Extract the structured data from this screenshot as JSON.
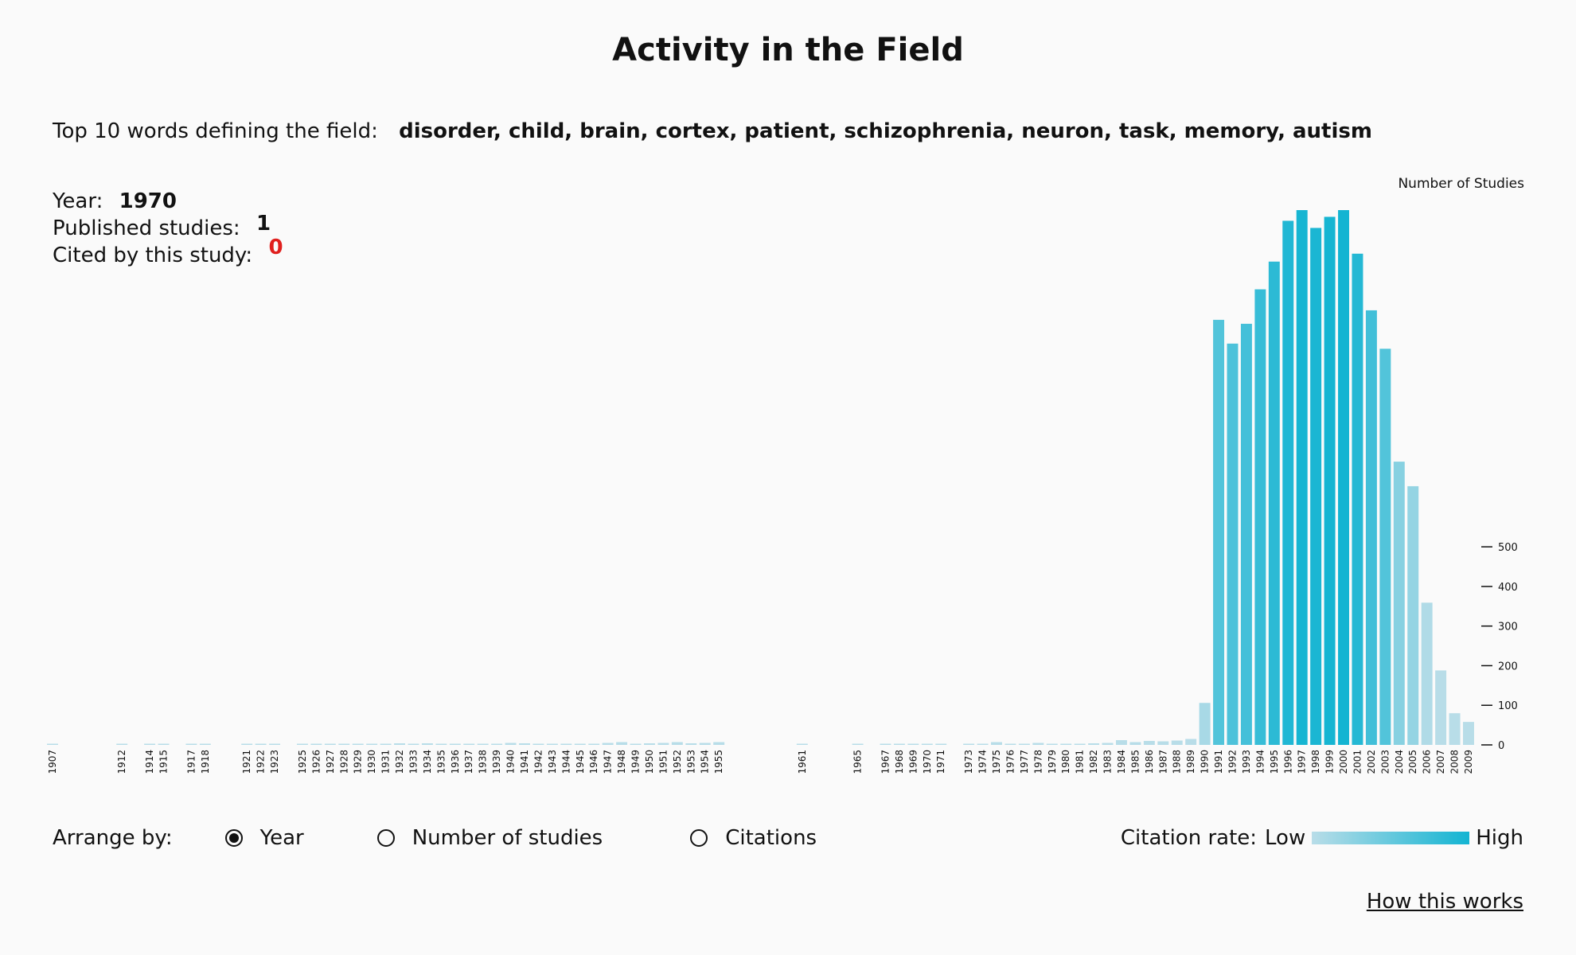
{
  "header": {
    "title": "Activity in the Field",
    "top_words_label": "Top 10 words defining the field:",
    "top_words": "disorder, child, brain, cortex, patient, schizophrenia, neuron, task, memory, autism"
  },
  "info": {
    "year_label": "Year:",
    "year_value": "1970",
    "published_label": "Published studies:",
    "published_value": "1",
    "cited_label": "Cited by this study:",
    "cited_value": "0",
    "cited_color": "#e0201e"
  },
  "controls": {
    "arrange_label": "Arrange by:",
    "options": [
      "Year",
      "Number of studies",
      "Citations"
    ],
    "selected": "Year"
  },
  "legend": {
    "label": "Citation rate:",
    "low": "Low",
    "high": "High",
    "low_color": "#b8dde8",
    "high_color": "#13b4d2"
  },
  "links": {
    "how": "How this works"
  },
  "chart_data": {
    "type": "bar",
    "ylabel": "Number of Studies",
    "yticks": [
      0,
      100,
      200,
      300,
      400,
      500
    ],
    "ylim": [
      0,
      1350
    ],
    "grid": false,
    "categories": [
      "1907",
      "1912",
      "1914",
      "1915",
      "1917",
      "1918",
      "1921",
      "1922",
      "1923",
      "1925",
      "1926",
      "1927",
      "1928",
      "1929",
      "1930",
      "1931",
      "1932",
      "1933",
      "1934",
      "1935",
      "1936",
      "1937",
      "1938",
      "1939",
      "1940",
      "1941",
      "1942",
      "1943",
      "1944",
      "1945",
      "1946",
      "1947",
      "1948",
      "1949",
      "1950",
      "1951",
      "1952",
      "1953",
      "1954",
      "1955",
      "1961",
      "1965",
      "1967",
      "1968",
      "1969",
      "1970",
      "1971",
      "1973",
      "1974",
      "1975",
      "1976",
      "1977",
      "1978",
      "1979",
      "1980",
      "1981",
      "1982",
      "1983",
      "1984",
      "1985",
      "1986",
      "1987",
      "1988",
      "1989",
      "1990",
      "1991",
      "1992",
      "1993",
      "1994",
      "1995",
      "1996",
      "1997",
      "1998",
      "1999",
      "2000",
      "2001",
      "2002",
      "2003",
      "2004",
      "2005",
      "2006",
      "2007",
      "2008",
      "2009"
    ],
    "values": [
      2,
      1,
      1,
      3,
      2,
      1,
      1,
      1,
      1,
      2,
      1,
      1,
      1,
      3,
      1,
      3,
      4,
      1,
      4,
      3,
      2,
      2,
      2,
      3,
      5,
      4,
      2,
      2,
      3,
      3,
      3,
      5,
      7,
      3,
      4,
      5,
      7,
      4,
      5,
      7,
      1,
      1,
      1,
      1,
      1,
      1,
      1,
      2,
      3,
      7,
      3,
      2,
      5,
      2,
      1,
      2,
      4,
      5,
      12,
      7,
      10,
      9,
      11,
      15,
      106,
      1073,
      1013,
      1063,
      1150,
      1220,
      1323,
      1350,
      1305,
      1333,
      1350,
      1240,
      1097,
      1000,
      715,
      653,
      359,
      188,
      80,
      58
    ],
    "citation_rate": [
      0,
      0,
      0,
      0,
      0,
      0,
      0,
      0,
      0,
      0,
      0,
      0,
      0,
      0,
      0,
      0,
      0,
      0,
      0,
      0,
      0,
      0,
      0,
      0,
      0,
      0,
      0,
      0,
      0,
      0,
      0,
      0,
      0,
      0,
      0,
      0,
      0,
      0,
      0,
      0,
      0,
      0,
      0,
      0,
      0,
      0,
      0,
      0,
      0,
      0,
      0,
      0,
      0,
      0,
      0,
      0,
      0,
      0,
      0,
      0,
      0,
      0,
      0,
      0,
      0.1,
      0.62,
      0.65,
      0.7,
      0.78,
      0.85,
      0.92,
      0.98,
      0.95,
      0.98,
      1,
      0.9,
      0.72,
      0.62,
      0.3,
      0.22,
      0.05,
      0,
      0,
      0
    ]
  }
}
